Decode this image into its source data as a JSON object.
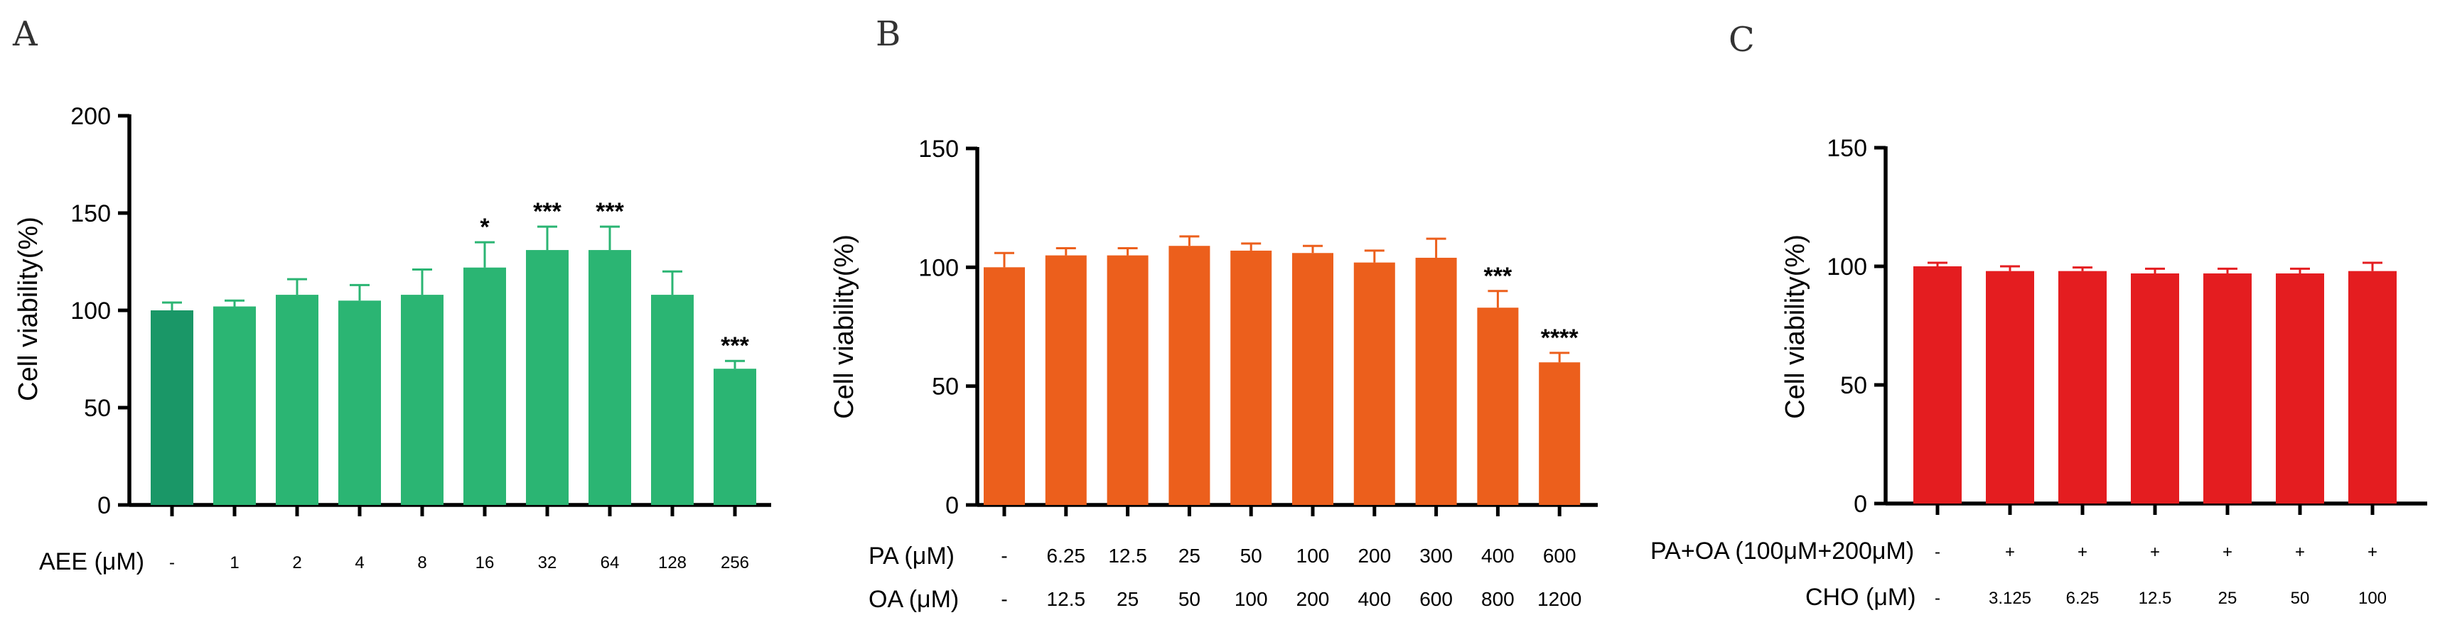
{
  "chart_data": [
    {
      "type": "bar",
      "panel": "A",
      "ylabel": "Cell viability(%)",
      "ylim": [
        0,
        200
      ],
      "yticks": [
        0,
        50,
        100,
        150,
        200
      ],
      "xrows": [
        {
          "label": "AEE (μM)",
          "values": [
            "-",
            "1",
            "2",
            "4",
            "8",
            "16",
            "32",
            "64",
            "128",
            "256"
          ]
        }
      ],
      "values": [
        100,
        102,
        108,
        105,
        108,
        122,
        131,
        131,
        108,
        70
      ],
      "errors": [
        4,
        3,
        8,
        8,
        13,
        13,
        12,
        12,
        12,
        4
      ],
      "significance": [
        "",
        "",
        "",
        "",
        "",
        "*",
        "***",
        "***",
        "",
        "***"
      ],
      "colors": [
        "#1a9767",
        "#2bb573",
        "#2bb573",
        "#2bb573",
        "#2bb573",
        "#2bb573",
        "#2bb573",
        "#2bb573",
        "#2bb573",
        "#2bb573"
      ]
    },
    {
      "type": "bar",
      "panel": "B",
      "ylabel": "Cell viability(%)",
      "ylim": [
        0,
        150
      ],
      "yticks": [
        0,
        50,
        100,
        150
      ],
      "xrows": [
        {
          "label": "PA (μM)",
          "values": [
            "-",
            "6.25",
            "12.5",
            "25",
            "50",
            "100",
            "200",
            "300",
            "400",
            "600"
          ]
        },
        {
          "label": "OA (μM)",
          "values": [
            "-",
            "12.5",
            "25",
            "50",
            "100",
            "200",
            "400",
            "600",
            "800",
            "1200"
          ]
        }
      ],
      "values": [
        100,
        105,
        105,
        109,
        107,
        106,
        102,
        104,
        83,
        60
      ],
      "errors": [
        6,
        3,
        3,
        4,
        3,
        3,
        5,
        8,
        7,
        4
      ],
      "significance": [
        "",
        "",
        "",
        "",
        "",
        "",
        "",
        "",
        "***",
        "****"
      ],
      "colors": [
        "#ec5f1c"
      ]
    },
    {
      "type": "bar",
      "panel": "C",
      "ylabel": "Cell viability(%)",
      "ylim": [
        0,
        150
      ],
      "yticks": [
        0,
        50,
        100,
        150
      ],
      "xrows": [
        {
          "label": "PA+OA (100μM+200μM)",
          "values": [
            "-",
            "+",
            "+",
            "+",
            "+",
            "+",
            "+"
          ]
        },
        {
          "label": "CHO (μM)",
          "values": [
            "-",
            "3.125",
            "6.25",
            "12.5",
            "25",
            "50",
            "100"
          ]
        }
      ],
      "values": [
        100,
        98,
        98,
        97,
        97,
        97,
        98
      ],
      "errors": [
        1.5,
        2,
        1.5,
        2,
        2,
        2,
        3.5
      ],
      "significance": [
        "",
        "",
        "",
        "",
        "",
        "",
        ""
      ],
      "colors": [
        "#e41d20"
      ]
    }
  ]
}
